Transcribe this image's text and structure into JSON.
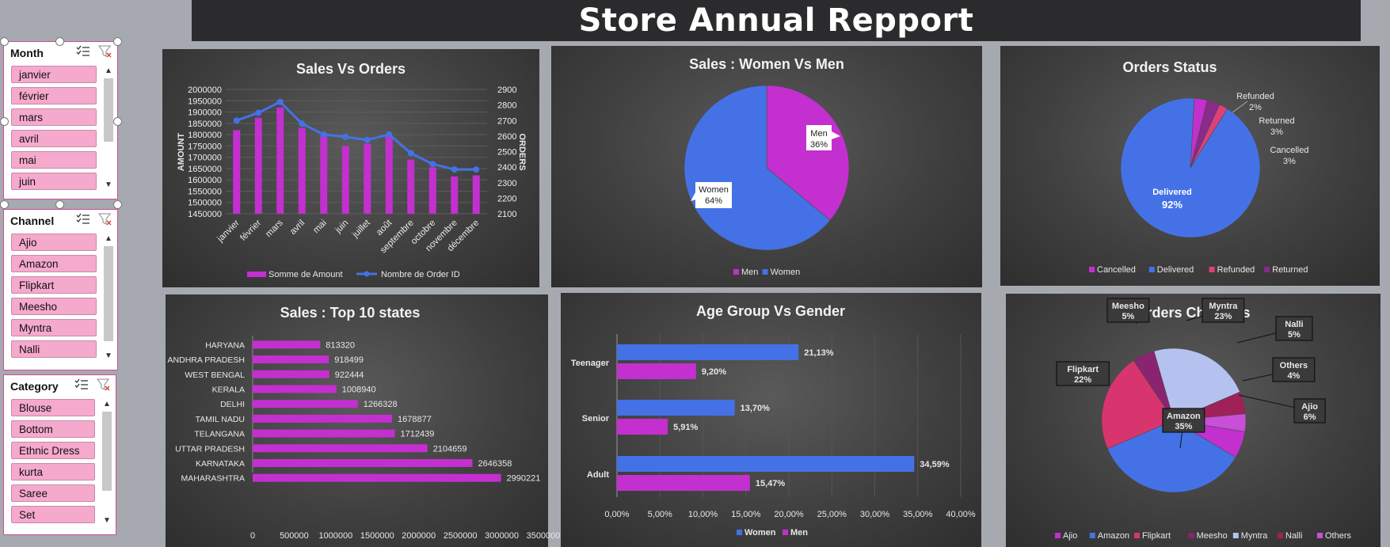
{
  "title": "Store Annual Repport",
  "slicers": {
    "month": {
      "header": "Month",
      "items": [
        "janvier",
        "février",
        "mars",
        "avril",
        "mai",
        "juin"
      ]
    },
    "channel": {
      "header": "Channel",
      "items": [
        "Ajio",
        "Amazon",
        "Flipkart",
        "Meesho",
        "Myntra",
        "Nalli"
      ]
    },
    "category": {
      "header": "Category",
      "items": [
        "Blouse",
        "Bottom",
        "Ethnic Dress",
        "kurta",
        "Saree",
        "Set"
      ]
    }
  },
  "colors": {
    "magenta": "#c42fcf",
    "blue": "#4472e6",
    "panel": "#404040"
  },
  "chart_data": [
    {
      "id": "sales_vs_orders",
      "type": "bar",
      "title": "Sales Vs Orders",
      "categories": [
        "janvier",
        "février",
        "mars",
        "avril",
        "mai",
        "juin",
        "juillet",
        "août",
        "septembre",
        "octobre",
        "novembre",
        "décembre"
      ],
      "series": [
        {
          "name": "Somme de Amount",
          "type": "bar",
          "axis": "left",
          "values": [
            1820000,
            1875000,
            1920000,
            1830000,
            1795000,
            1750000,
            1760000,
            1795000,
            1690000,
            1655000,
            1615000,
            1620000
          ]
        },
        {
          "name": "Nombre de Order ID",
          "type": "line",
          "axis": "right",
          "values": [
            2700,
            2750,
            2820,
            2680,
            2610,
            2595,
            2575,
            2610,
            2490,
            2420,
            2385,
            2385
          ]
        }
      ],
      "ylabel": "AMOUNT",
      "y2label": "ORDERS",
      "ylim": [
        1450000,
        2000000
      ],
      "yticks": [
        "2000000",
        "1950000",
        "1900000",
        "1850000",
        "1800000",
        "1750000",
        "1700000",
        "1650000",
        "1600000",
        "1550000",
        "1500000",
        "1450000"
      ],
      "y2lim": [
        2100,
        2900
      ],
      "y2ticks": [
        "2900",
        "2800",
        "2700",
        "2600",
        "2500",
        "2400",
        "2300",
        "2200",
        "2100"
      ],
      "legend": "bottom"
    },
    {
      "id": "sales_women_men",
      "type": "pie",
      "title": "Sales : Women Vs Men",
      "slices": [
        {
          "name": "Men",
          "label": "Men",
          "pct": "36%",
          "value": 36,
          "color": "#c42fcf"
        },
        {
          "name": "Women",
          "label": "Women",
          "pct": "64%",
          "value": 64,
          "color": "#4472e6"
        }
      ],
      "legend_items": [
        "Men",
        "Women"
      ],
      "legend": "bottom"
    },
    {
      "id": "orders_status",
      "type": "pie",
      "title": "Orders Status",
      "slices": [
        {
          "name": "Cancelled",
          "label": "Cancelled",
          "pct": "3%",
          "value": 3,
          "color": "#c42fcf"
        },
        {
          "name": "Delivered",
          "label": "Delivered",
          "pct": "92%",
          "value": 92,
          "color": "#4472e6"
        },
        {
          "name": "Refunded",
          "label": "Refunded",
          "pct": "2%",
          "value": 2,
          "color": "#e0407a"
        },
        {
          "name": "Returned",
          "label": "Returned",
          "pct": "3%",
          "value": 3,
          "color": "#8a2a8a"
        }
      ],
      "legend_items": [
        "Cancelled",
        "Delivered",
        "Refunded",
        "Returned"
      ],
      "legend": "bottom"
    },
    {
      "id": "top10_states",
      "type": "bar",
      "orientation": "horizontal",
      "title": "Sales : Top 10 states",
      "categories": [
        "HARYANA",
        "ANDHRA PRADESH",
        "WEST BENGAL",
        "KERALA",
        "DELHI",
        "TAMIL NADU",
        "TELANGANA",
        "UTTAR PRADESH",
        "KARNATAKA",
        "MAHARASHTRA"
      ],
      "values": [
        813320,
        918499,
        922444,
        1008940,
        1266328,
        1678877,
        1712439,
        2104659,
        2646358,
        2990221
      ],
      "value_labels": [
        "813320",
        "918499",
        "922444",
        "1008940",
        "1266328",
        "1678877",
        "1712439",
        "2104659",
        "2646358",
        "2990221"
      ],
      "xlim": [
        0,
        3500000
      ],
      "xticks": [
        "0",
        "500000",
        "1000000",
        "1500000",
        "2000000",
        "2500000",
        "3000000",
        "3500000"
      ]
    },
    {
      "id": "age_group_gender",
      "type": "bar",
      "orientation": "horizontal",
      "title": "Age Group Vs Gender",
      "categories": [
        "Teenager",
        "Senior",
        "Adult"
      ],
      "series": [
        {
          "name": "Women",
          "values": [
            21.13,
            13.7,
            34.59
          ],
          "labels": [
            "21,13%",
            "13,70%",
            "34,59%"
          ],
          "color": "#4472e6"
        },
        {
          "name": "Men",
          "values": [
            9.2,
            5.91,
            15.47
          ],
          "labels": [
            "9,20%",
            "5,91%",
            "15,47%"
          ],
          "color": "#c42fcf"
        }
      ],
      "xlim": [
        0,
        40
      ],
      "xticks": [
        "0,00%",
        "5,00%",
        "10,00%",
        "15,00%",
        "20,00%",
        "25,00%",
        "30,00%",
        "35,00%",
        "40,00%"
      ],
      "legend_items": [
        "Women",
        "Men"
      ],
      "legend": "bottom"
    },
    {
      "id": "orders_channels",
      "type": "pie",
      "title": "Orders Channels",
      "slices": [
        {
          "name": "Ajio",
          "label": "Ajio",
          "pct": "6%",
          "value": 6,
          "color": "#c42fcf"
        },
        {
          "name": "Amazon",
          "label": "Amazon",
          "pct": "35%",
          "value": 35,
          "color": "#4472e6"
        },
        {
          "name": "Flipkart",
          "label": "Flipkart",
          "pct": "22%",
          "value": 22,
          "color": "#d8356e"
        },
        {
          "name": "Meesho",
          "label": "Meesho",
          "pct": "5%",
          "value": 5,
          "color": "#8a2470"
        },
        {
          "name": "Myntra",
          "label": "Myntra",
          "pct": "23%",
          "value": 23,
          "color": "#b5c2f0"
        },
        {
          "name": "Nalli",
          "label": "Nalli",
          "pct": "5%",
          "value": 5,
          "color": "#a0205a"
        },
        {
          "name": "Others",
          "label": "Others",
          "pct": "4%",
          "value": 4,
          "color": "#c84fd6"
        }
      ],
      "legend_items": [
        "Ajio",
        "Amazon",
        "Flipkart",
        "Meesho",
        "Myntra",
        "Nalli",
        "Others"
      ],
      "legend": "bottom"
    }
  ]
}
